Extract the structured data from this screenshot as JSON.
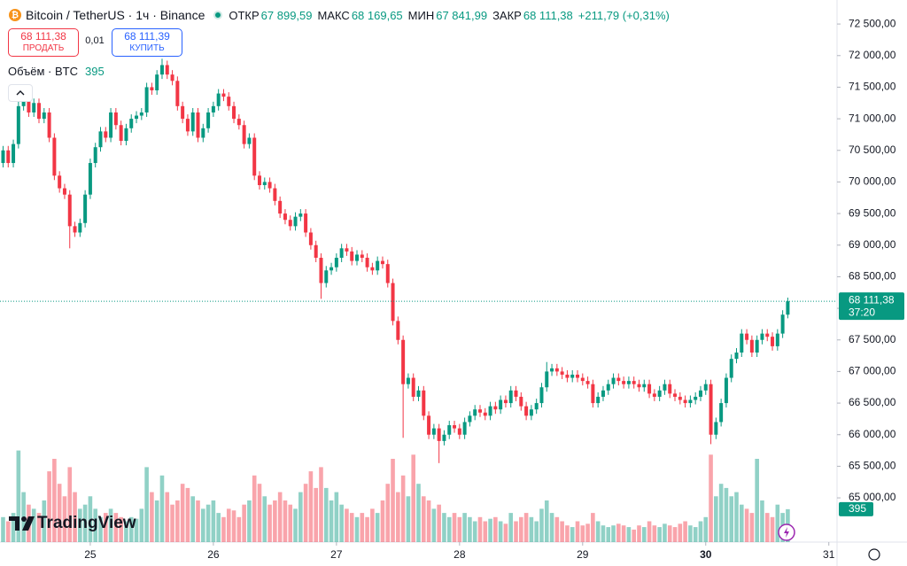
{
  "header": {
    "symbol": "Bitcoin / TetherUS · 1ч · Binance",
    "open_label": "ОТКР",
    "open": "67 899,59",
    "high_label": "МАКС",
    "high": "68 169,65",
    "low_label": "МИН",
    "low": "67 841,99",
    "close_label": "ЗАКР",
    "close": "68 111,38",
    "change": "+211,79 (+0,31%)"
  },
  "trade": {
    "sell_price": "68 111,38",
    "sell_label": "ПРОДАТЬ",
    "spread": "0,01",
    "buy_price": "68 111,39",
    "buy_label": "КУПИТЬ"
  },
  "volume_legend": {
    "label": "Объём · BTC",
    "value": "395"
  },
  "logo": "TradingView",
  "chart_data": {
    "type": "candlestick",
    "open": [
      70300,
      70500,
      70300,
      70600,
      71200,
      71300,
      71100,
      71250,
      71000,
      71100,
      70700,
      70100,
      69900,
      69800,
      69300,
      69200,
      69350,
      69800,
      70300,
      70550,
      70800,
      70700,
      71100,
      70900,
      70650,
      70850,
      71000,
      71050,
      71100,
      71500,
      71450,
      71700,
      71850,
      71700,
      71600,
      71200,
      71000,
      70800,
      71100,
      70700,
      70850,
      71100,
      71200,
      71400,
      71350,
      71200,
      71000,
      70900,
      70600,
      70700,
      70100,
      69950,
      70000,
      69900,
      69700,
      69500,
      69400,
      69300,
      69450,
      69500,
      69200,
      69000,
      68800,
      68400,
      68600,
      68650,
      68800,
      68950,
      68900,
      68750,
      68850,
      68800,
      68650,
      68600,
      68750,
      68700,
      68400,
      67800,
      67500,
      66800,
      66900,
      66600,
      66700,
      66300,
      66000,
      66100,
      65900,
      66000,
      66150,
      66100,
      66000,
      66200,
      66300,
      66400,
      66350,
      66300,
      66450,
      66400,
      66550,
      66500,
      66700,
      66600,
      66450,
      66300,
      66400,
      66500,
      66750,
      67000,
      67050,
      67000,
      66950,
      66900,
      66950,
      66900,
      66850,
      66800,
      66500,
      66600,
      66700,
      66800,
      66900,
      66850,
      66800,
      66850,
      66800,
      66750,
      66800,
      66650,
      66600,
      66700,
      66800,
      66650,
      66600,
      66550,
      66500,
      66550,
      66600,
      66700,
      66800,
      66000,
      66200,
      66500,
      66900,
      67200,
      67300,
      67600,
      67500,
      67300,
      67500,
      67600,
      67550,
      67400,
      67600,
      67899.59
    ],
    "high": [
      70570,
      70570,
      70670,
      71270,
      71370,
      71370,
      71320,
      71320,
      71170,
      71170,
      70770,
      70170,
      69970,
      69870,
      69370,
      69420,
      69870,
      70370,
      70620,
      70870,
      70870,
      71170,
      71170,
      70970,
      70920,
      71070,
      71120,
      71170,
      71570,
      71570,
      71770,
      71950,
      71920,
      71770,
      71670,
      71270,
      71070,
      71170,
      71170,
      70920,
      71170,
      71270,
      71470,
      71470,
      71420,
      71270,
      71070,
      70970,
      70770,
      70770,
      70170,
      70070,
      70070,
      69970,
      69770,
      69570,
      69470,
      69520,
      69570,
      69570,
      69270,
      69070,
      68870,
      68670,
      68720,
      68870,
      69020,
      69020,
      68970,
      68920,
      68920,
      68870,
      68720,
      68820,
      68820,
      68770,
      68470,
      67870,
      67570,
      66970,
      66970,
      66770,
      66770,
      66370,
      66170,
      66170,
      66070,
      66220,
      66220,
      66170,
      66270,
      66370,
      66470,
      66470,
      66420,
      66520,
      66520,
      66620,
      66620,
      66770,
      66770,
      66670,
      66520,
      66470,
      66570,
      66820,
      67150,
      67120,
      67120,
      67070,
      67020,
      67020,
      67020,
      66970,
      66920,
      66870,
      66670,
      66770,
      66870,
      66970,
      66970,
      66920,
      66920,
      66920,
      66870,
      66870,
      66870,
      66720,
      66770,
      66870,
      66870,
      66720,
      66670,
      66620,
      66620,
      66670,
      66770,
      66870,
      66870,
      66270,
      66570,
      66970,
      67270,
      67370,
      67670,
      67670,
      67570,
      67570,
      67670,
      67670,
      67620,
      67670,
      67970,
      68169.65
    ],
    "low": [
      70230,
      70230,
      70230,
      70530,
      71130,
      71030,
      71030,
      70930,
      70930,
      70630,
      70030,
      69830,
      69730,
      68950,
      69130,
      69130,
      69280,
      69730,
      70230,
      70480,
      70630,
      70630,
      70830,
      70580,
      70580,
      70780,
      70930,
      70980,
      71030,
      71380,
      71380,
      71630,
      71630,
      71530,
      71130,
      70930,
      70730,
      70730,
      70630,
      70630,
      70780,
      71030,
      71130,
      71280,
      71130,
      70930,
      70830,
      70530,
      70530,
      70030,
      69880,
      69880,
      69830,
      69630,
      69430,
      69330,
      69230,
      69230,
      69380,
      69130,
      68930,
      68730,
      68150,
      68330,
      68530,
      68580,
      68730,
      68830,
      68680,
      68680,
      68730,
      68580,
      68530,
      68530,
      68630,
      68330,
      67730,
      67430,
      65950,
      66730,
      66530,
      66530,
      66230,
      65930,
      65930,
      65550,
      65830,
      65930,
      66030,
      65930,
      65930,
      66130,
      66230,
      66280,
      66230,
      66230,
      66330,
      66330,
      66430,
      66430,
      66530,
      66380,
      66230,
      66230,
      66330,
      66430,
      66680,
      66930,
      66930,
      66880,
      66830,
      66830,
      66830,
      66780,
      66730,
      66430,
      66430,
      66530,
      66630,
      66730,
      66780,
      66730,
      66730,
      66730,
      66680,
      66680,
      66580,
      66530,
      66530,
      66630,
      66580,
      66530,
      66480,
      66430,
      66430,
      66480,
      66530,
      66630,
      65850,
      65930,
      66130,
      66430,
      66830,
      67130,
      67230,
      67430,
      67230,
      67230,
      67430,
      67480,
      67330,
      67330,
      67530,
      67841.99
    ],
    "close": [
      70500,
      70300,
      70600,
      71200,
      71300,
      71100,
      71250,
      71000,
      71100,
      70700,
      70100,
      69900,
      69800,
      69300,
      69200,
      69350,
      69800,
      70300,
      70550,
      70800,
      70700,
      71100,
      70900,
      70650,
      70850,
      71000,
      71050,
      71100,
      71500,
      71450,
      71700,
      71850,
      71700,
      71600,
      71200,
      71000,
      70800,
      71100,
      70700,
      70850,
      71100,
      71200,
      71400,
      71350,
      71200,
      71000,
      70900,
      70600,
      70700,
      70100,
      69950,
      70000,
      69900,
      69700,
      69500,
      69400,
      69300,
      69450,
      69500,
      69200,
      69000,
      68800,
      68400,
      68600,
      68650,
      68800,
      68950,
      68900,
      68750,
      68850,
      68800,
      68650,
      68600,
      68750,
      68700,
      68400,
      67800,
      67500,
      66800,
      66900,
      66600,
      66700,
      66300,
      66000,
      66100,
      65900,
      66000,
      66150,
      66100,
      66000,
      66200,
      66300,
      66400,
      66350,
      66300,
      66450,
      66400,
      66550,
      66500,
      66700,
      66600,
      66450,
      66300,
      66400,
      66500,
      66750,
      67000,
      67050,
      67000,
      66950,
      66900,
      66950,
      66900,
      66850,
      66800,
      66500,
      66600,
      66700,
      66800,
      66900,
      66850,
      66800,
      66850,
      66800,
      66750,
      66800,
      66650,
      66600,
      66700,
      66800,
      66650,
      66600,
      66550,
      66500,
      66550,
      66600,
      66700,
      66800,
      66000,
      66200,
      66500,
      66900,
      67200,
      67300,
      67600,
      67500,
      67300,
      67500,
      67600,
      67550,
      67400,
      67600,
      67899.59,
      68111.38
    ],
    "volume": [
      300,
      250,
      350,
      1100,
      600,
      450,
      400,
      350,
      500,
      850,
      1000,
      700,
      550,
      900,
      600,
      400,
      450,
      550,
      400,
      300,
      350,
      400,
      350,
      300,
      250,
      300,
      280,
      400,
      900,
      600,
      500,
      800,
      600,
      450,
      500,
      700,
      650,
      550,
      500,
      400,
      450,
      500,
      350,
      300,
      400,
      380,
      300,
      450,
      500,
      800,
      700,
      550,
      450,
      500,
      600,
      500,
      450,
      400,
      600,
      700,
      850,
      650,
      900,
      650,
      500,
      600,
      450,
      400,
      350,
      300,
      350,
      300,
      400,
      350,
      500,
      700,
      1000,
      600,
      800,
      550,
      1050,
      700,
      550,
      500,
      400,
      450,
      350,
      300,
      350,
      300,
      350,
      300,
      250,
      300,
      250,
      280,
      300,
      250,
      220,
      350,
      250,
      300,
      350,
      300,
      250,
      400,
      500,
      350,
      300,
      250,
      200,
      180,
      250,
      200,
      220,
      350,
      250,
      200,
      180,
      200,
      220,
      200,
      180,
      150,
      200,
      180,
      250,
      200,
      180,
      220,
      200,
      180,
      220,
      250,
      200,
      180,
      250,
      300,
      1050,
      550,
      700,
      650,
      550,
      600,
      450,
      400,
      350,
      1000,
      500,
      350,
      300,
      450,
      350,
      395
    ],
    "up_color": "#089981",
    "down_color": "#f23645",
    "xlim": [
      -0.6,
      162.6
    ],
    "xticks": [
      {
        "value": 17,
        "label": "25"
      },
      {
        "value": 41,
        "label": "26"
      },
      {
        "value": 65,
        "label": "27"
      },
      {
        "value": 89,
        "label": "28"
      },
      {
        "value": 113,
        "label": "29"
      },
      {
        "value": 137,
        "label": "30"
      },
      {
        "value": 161,
        "label": "31"
      }
    ],
    "ylim": [
      64300,
      72880
    ],
    "yticks": [
      {
        "value": 65000,
        "label": "65 000,00"
      },
      {
        "value": 65500,
        "label": "65 500,00"
      },
      {
        "value": 66000,
        "label": "66 000,00"
      },
      {
        "value": 66500,
        "label": "66 500,00"
      },
      {
        "value": 67000,
        "label": "67 000,00"
      },
      {
        "value": 67500,
        "label": "67 500,00"
      },
      {
        "value": 68000,
        "label": "68 000,00"
      },
      {
        "value": 68500,
        "label": "68 500,00"
      },
      {
        "value": 69000,
        "label": "69 000,00"
      },
      {
        "value": 69500,
        "label": "69 500,00"
      },
      {
        "value": 70000,
        "label": "70 000,00"
      },
      {
        "value": 70500,
        "label": "70 500,00"
      },
      {
        "value": 71000,
        "label": "71 000,00"
      },
      {
        "value": 71500,
        "label": "71 500,00"
      },
      {
        "value": 72000,
        "label": "72 000,00"
      },
      {
        "value": 72500,
        "label": "72 500,00"
      }
    ],
    "last_price_label": "68 111,38",
    "countdown": "37:20",
    "last_volume_label": "395"
  }
}
